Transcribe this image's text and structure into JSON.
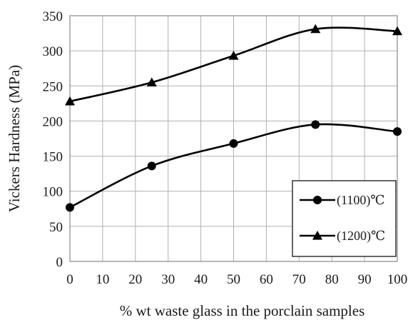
{
  "chart_data": {
    "type": "line",
    "xlabel": "% wt  waste glass in the porclain samples",
    "ylabel": "Vickers Hardness (MPa)",
    "xlim": [
      0,
      100
    ],
    "ylim": [
      0,
      350
    ],
    "x_ticks": [
      0,
      10,
      20,
      30,
      40,
      50,
      60,
      70,
      80,
      90,
      100
    ],
    "y_ticks": [
      0,
      50,
      100,
      150,
      200,
      250,
      300,
      350
    ],
    "grid": true,
    "legend_position": "bottom-right",
    "series": [
      {
        "name": "(1100)℃",
        "marker": "circle",
        "x": [
          0,
          25,
          50,
          75,
          100
        ],
        "y": [
          77,
          136,
          168,
          195,
          185
        ]
      },
      {
        "name": "(1200)℃",
        "marker": "triangle",
        "x": [
          0,
          25,
          50,
          75,
          100
        ],
        "y": [
          228,
          255,
          293,
          331,
          328
        ]
      }
    ],
    "colors": {
      "line": "#000000",
      "grid": "#b0b0b0",
      "frame": "#888888"
    }
  }
}
